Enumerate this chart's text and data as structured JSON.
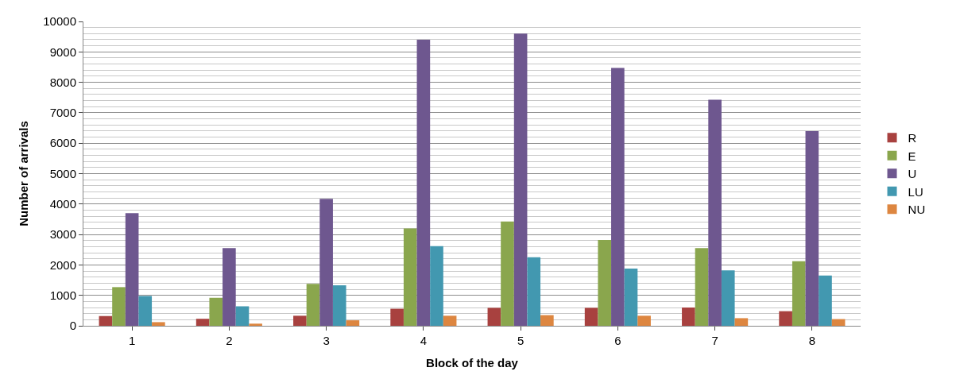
{
  "chart_data": {
    "type": "bar",
    "xlabel": "Block of the day",
    "ylabel": "Number of arrivals",
    "categories": [
      "1",
      "2",
      "3",
      "4",
      "5",
      "6",
      "7",
      "8"
    ],
    "series": [
      {
        "name": "R",
        "color": "#a8413f",
        "values": [
          320,
          230,
          330,
          560,
          590,
          590,
          600,
          480
        ]
      },
      {
        "name": "E",
        "color": "#8aa64d",
        "values": [
          1270,
          920,
          1380,
          3200,
          3430,
          2820,
          2550,
          2120
        ]
      },
      {
        "name": "U",
        "color": "#6e578f",
        "values": [
          3700,
          2550,
          4170,
          9400,
          9600,
          8470,
          7430,
          6400
        ]
      },
      {
        "name": "LU",
        "color": "#4298b0",
        "values": [
          980,
          640,
          1330,
          2620,
          2250,
          1880,
          1820,
          1650
        ]
      },
      {
        "name": "NU",
        "color": "#dd8640",
        "values": [
          120,
          70,
          180,
          330,
          350,
          330,
          250,
          220
        ]
      }
    ],
    "ylim": [
      0,
      10000
    ],
    "yticks": [
      0,
      1000,
      2000,
      3000,
      4000,
      5000,
      6000,
      7000,
      8000,
      9000,
      10000
    ],
    "grid": "y",
    "legend": "right"
  }
}
